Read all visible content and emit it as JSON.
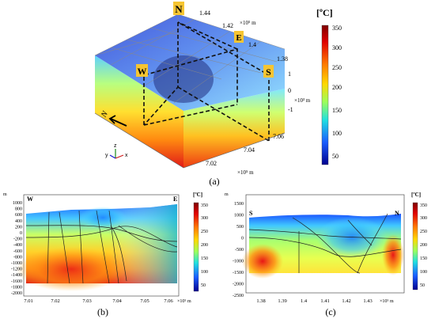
{
  "panel_a": {
    "caption": "(a)",
    "unit": "[ºC]",
    "colorbar_ticks": [
      "350",
      "300",
      "250",
      "200",
      "150",
      "100",
      "50"
    ],
    "directions": {
      "n": "N",
      "e": "E",
      "w": "W",
      "s": "S"
    },
    "x_ticks": [
      "7.02",
      "7.04",
      "7.06"
    ],
    "x_unit": "×10⁵ m",
    "y_ticks": [
      "1.44",
      "1.42",
      "1.4",
      "1.38"
    ],
    "y_unit": "×10⁵ m",
    "z_ticks": [
      "1",
      "0",
      "-1"
    ],
    "z_unit": "×10³ m",
    "axes": {
      "x": "x",
      "y": "y",
      "z": "z"
    },
    "compass": "N"
  },
  "panel_b": {
    "caption": "(b)",
    "unit": "[ºC]",
    "m_label": "m",
    "left": "W",
    "right": "E",
    "y_ticks": [
      "1000",
      "800",
      "600",
      "400",
      "200",
      "0",
      "-200",
      "-400",
      "-600",
      "-800",
      "-1000",
      "-1200",
      "-1400",
      "-1600",
      "-1800",
      "-2000"
    ],
    "x_ticks": [
      "7.01",
      "7.02",
      "7.03",
      "7.04",
      "7.05",
      "7.06"
    ],
    "x_unit": "×10⁵ m",
    "colorbar_ticks": [
      "350",
      "300",
      "250",
      "200",
      "150",
      "100",
      "50"
    ]
  },
  "panel_c": {
    "caption": "(c)",
    "unit": "[ºC]",
    "m_label": "m",
    "left": "S",
    "right": "N",
    "y_ticks": [
      "1500",
      "1000",
      "500",
      "0",
      "-500",
      "-1000",
      "-1500",
      "-2000",
      "-2500"
    ],
    "x_ticks": [
      "1.38",
      "1.39",
      "1.4",
      "1.41",
      "1.42",
      "1.43"
    ],
    "x_unit": "×10⁵ m",
    "colorbar_ticks": [
      "350",
      "300",
      "250",
      "200",
      "150",
      "100",
      "50"
    ]
  }
}
